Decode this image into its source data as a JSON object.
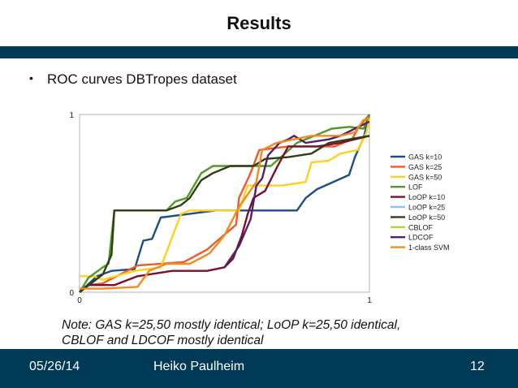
{
  "slide": {
    "title": "Results",
    "bullet": "ROC curves DBTropes dataset",
    "note_line1": "Note: GAS k=25,50 mostly identical; LoOP k=25,50 identical,",
    "note_line2": "CBLOF and LDCOF mostly identical"
  },
  "footer": {
    "date": "05/26/14",
    "author": "Heiko Paulheim",
    "page": "12"
  },
  "chart_data": {
    "type": "line",
    "title": "",
    "xlabel": "",
    "ylabel": "",
    "xlim": [
      0,
      1
    ],
    "ylim": [
      0,
      1
    ],
    "x_ticks": [
      "0",
      "1"
    ],
    "y_ticks": [
      "0",
      "1"
    ],
    "grid": false,
    "legend_position": "right",
    "series": [
      {
        "name": "GAS k=10",
        "color": "#1a4f8a",
        "points": [
          [
            0.0,
            0.0
          ],
          [
            0.02,
            0.03
          ],
          [
            0.06,
            0.09
          ],
          [
            0.11,
            0.12
          ],
          [
            0.19,
            0.13
          ],
          [
            0.22,
            0.29
          ],
          [
            0.25,
            0.3
          ],
          [
            0.28,
            0.42
          ],
          [
            0.47,
            0.46
          ],
          [
            0.75,
            0.46
          ],
          [
            0.78,
            0.53
          ],
          [
            0.82,
            0.58
          ],
          [
            0.93,
            0.66
          ],
          [
            0.95,
            0.76
          ],
          [
            0.98,
            0.87
          ],
          [
            1.0,
            1.0
          ]
        ]
      },
      {
        "name": "GAS k=25",
        "color": "#f05a28",
        "points": [
          [
            0.0,
            0.0
          ],
          [
            0.03,
            0.04
          ],
          [
            0.08,
            0.05
          ],
          [
            0.2,
            0.15
          ],
          [
            0.36,
            0.17
          ],
          [
            0.44,
            0.24
          ],
          [
            0.54,
            0.38
          ],
          [
            0.55,
            0.53
          ],
          [
            0.59,
            0.67
          ],
          [
            0.62,
            0.8
          ],
          [
            0.72,
            0.82
          ],
          [
            0.88,
            0.82
          ],
          [
            0.94,
            0.86
          ],
          [
            0.96,
            0.92
          ],
          [
            1.0,
            1.0
          ]
        ]
      },
      {
        "name": "GAS k=50",
        "color": "#ffd21a",
        "points": [
          [
            0.0,
            0.09
          ],
          [
            0.05,
            0.09
          ],
          [
            0.08,
            0.07
          ],
          [
            0.19,
            0.12
          ],
          [
            0.28,
            0.14
          ],
          [
            0.35,
            0.44
          ],
          [
            0.38,
            0.46
          ],
          [
            0.55,
            0.46
          ],
          [
            0.58,
            0.6
          ],
          [
            0.7,
            0.6
          ],
          [
            0.78,
            0.62
          ],
          [
            0.8,
            0.73
          ],
          [
            0.86,
            0.74
          ],
          [
            0.9,
            0.78
          ],
          [
            0.96,
            0.8
          ],
          [
            0.99,
            0.9
          ],
          [
            1.0,
            0.98
          ]
        ]
      },
      {
        "name": "LOF",
        "color": "#4f9a23",
        "points": [
          [
            0.0,
            0.0
          ],
          [
            0.03,
            0.08
          ],
          [
            0.08,
            0.14
          ],
          [
            0.1,
            0.16
          ],
          [
            0.12,
            0.46
          ],
          [
            0.3,
            0.46
          ],
          [
            0.33,
            0.51
          ],
          [
            0.37,
            0.53
          ],
          [
            0.42,
            0.67
          ],
          [
            0.46,
            0.71
          ],
          [
            0.66,
            0.71
          ],
          [
            0.75,
            0.84
          ],
          [
            0.81,
            0.88
          ],
          [
            0.87,
            0.92
          ],
          [
            0.93,
            0.93
          ],
          [
            0.98,
            0.92
          ],
          [
            1.0,
            1.0
          ]
        ]
      },
      {
        "name": "LoOP k=10",
        "color": "#7a0f2e",
        "points": [
          [
            0.0,
            0.0
          ],
          [
            0.03,
            0.04
          ],
          [
            0.12,
            0.04
          ],
          [
            0.2,
            0.09
          ],
          [
            0.32,
            0.12
          ],
          [
            0.44,
            0.12
          ],
          [
            0.5,
            0.14
          ],
          [
            0.53,
            0.19
          ],
          [
            0.56,
            0.32
          ],
          [
            0.58,
            0.44
          ],
          [
            0.6,
            0.53
          ],
          [
            0.64,
            0.57
          ],
          [
            0.68,
            0.7
          ],
          [
            0.72,
            0.82
          ],
          [
            0.82,
            0.82
          ],
          [
            0.9,
            0.84
          ],
          [
            1.0,
            0.88
          ]
        ]
      },
      {
        "name": "LoOP k=25",
        "color": "#88c4ee",
        "points": []
      },
      {
        "name": "LoOP k=50",
        "color": "#303d12",
        "points": [
          [
            0.0,
            0.0
          ],
          [
            0.04,
            0.05
          ],
          [
            0.08,
            0.1
          ],
          [
            0.11,
            0.21
          ],
          [
            0.12,
            0.46
          ],
          [
            0.3,
            0.46
          ],
          [
            0.35,
            0.49
          ],
          [
            0.38,
            0.53
          ],
          [
            0.42,
            0.63
          ],
          [
            0.46,
            0.67
          ],
          [
            0.52,
            0.71
          ],
          [
            0.6,
            0.71
          ],
          [
            0.64,
            0.75
          ],
          [
            0.72,
            0.76
          ],
          [
            0.8,
            0.78
          ],
          [
            0.86,
            0.84
          ],
          [
            1.0,
            0.88
          ]
        ]
      },
      {
        "name": "CBLOF",
        "color": "#b5d62b",
        "points": []
      },
      {
        "name": "LDCOF",
        "color": "#52206b",
        "points": [
          [
            0.5,
            0.14
          ],
          [
            0.55,
            0.26
          ],
          [
            0.59,
            0.41
          ],
          [
            0.61,
            0.6
          ],
          [
            0.63,
            0.64
          ],
          [
            0.65,
            0.77
          ],
          [
            0.69,
            0.84
          ],
          [
            0.72,
            0.86
          ],
          [
            0.74,
            0.88
          ],
          [
            0.78,
            0.84
          ],
          [
            0.86,
            0.86
          ],
          [
            0.9,
            0.88
          ],
          [
            0.95,
            0.92
          ],
          [
            1.0,
            0.96
          ]
        ]
      },
      {
        "name": "1-class SVM",
        "color": "#f28a1c",
        "points": [
          [
            0.0,
            0.02
          ],
          [
            0.08,
            0.02
          ],
          [
            0.2,
            0.03
          ],
          [
            0.24,
            0.12
          ],
          [
            0.3,
            0.16
          ],
          [
            0.38,
            0.16
          ],
          [
            0.45,
            0.22
          ],
          [
            0.5,
            0.32
          ],
          [
            0.55,
            0.48
          ],
          [
            0.58,
            0.55
          ],
          [
            0.61,
            0.62
          ],
          [
            0.63,
            0.8
          ],
          [
            0.68,
            0.84
          ],
          [
            0.8,
            0.88
          ],
          [
            0.9,
            0.88
          ],
          [
            0.95,
            0.9
          ],
          [
            0.98,
            0.97
          ],
          [
            1.0,
            0.98
          ]
        ]
      }
    ]
  }
}
